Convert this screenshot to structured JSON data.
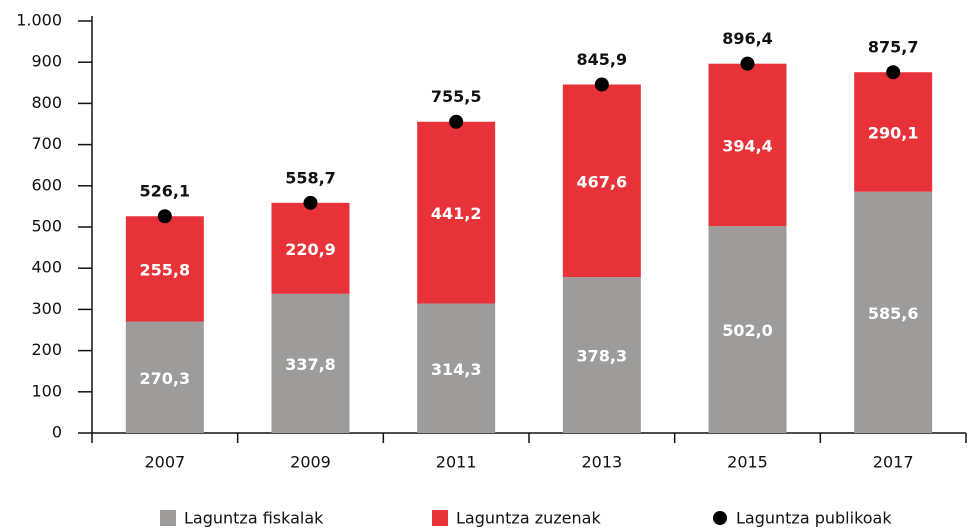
{
  "chart_data": {
    "type": "bar",
    "stacked": true,
    "categories": [
      "2007",
      "2009",
      "2011",
      "2013",
      "2015",
      "2017"
    ],
    "series": [
      {
        "name": "Laguntza fiskalak",
        "color": "#9d9c9a",
        "values": [
          270.3,
          337.8,
          314.3,
          378.3,
          502.0,
          585.6
        ],
        "value_labels": [
          "270,3",
          "337,8",
          "314,3",
          "378,3",
          "502,0",
          "585,6"
        ]
      },
      {
        "name": "Laguntza zuzenak",
        "color": "#e8323a",
        "values": [
          255.8,
          220.9,
          441.2,
          467.6,
          394.4,
          290.1
        ],
        "value_labels": [
          "255,8",
          "220,9",
          "441,2",
          "467,6",
          "394,4",
          "290,1"
        ]
      },
      {
        "name": "Laguntza publikoak",
        "color": "#000000",
        "type": "dot",
        "values": [
          526.1,
          558.7,
          755.5,
          845.9,
          896.4,
          875.7
        ],
        "value_labels": [
          "526,1",
          "558,7",
          "755,5",
          "845,9",
          "896,4",
          "875,7"
        ]
      }
    ],
    "ylim": [
      0,
      1000
    ],
    "yticks": [
      0,
      100,
      200,
      300,
      400,
      500,
      600,
      700,
      800,
      900,
      {
        "value": 1000,
        "label": "1.000"
      }
    ]
  }
}
